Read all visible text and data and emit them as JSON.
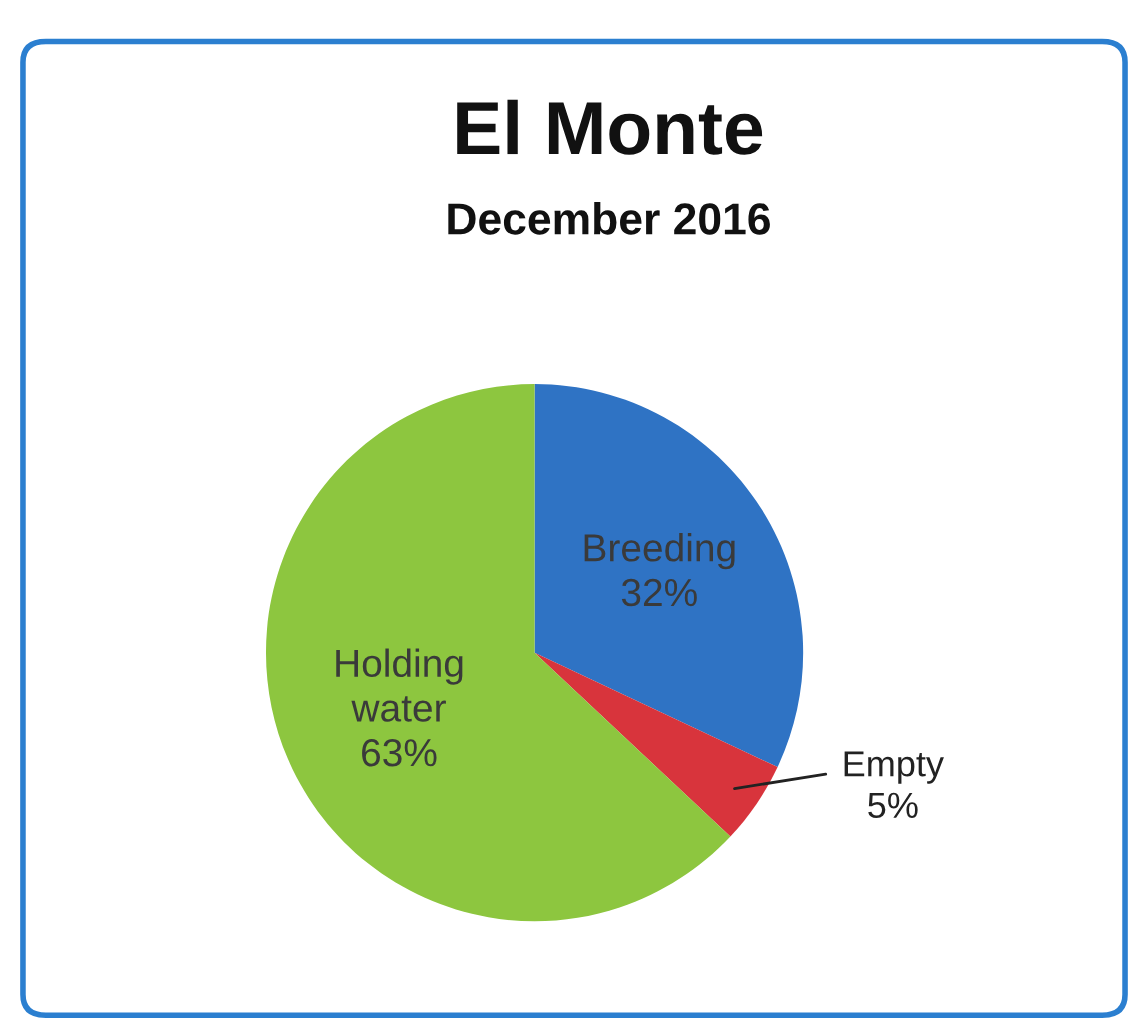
{
  "chart_data": {
    "type": "pie",
    "title": "El Monte",
    "subtitle": "December 2016",
    "categories": [
      "Breeding",
      "Empty",
      "Holding water"
    ],
    "values": [
      32,
      5,
      63
    ],
    "value_labels": [
      "32%",
      "5%",
      "63%"
    ],
    "colors": [
      "#2f73c4",
      "#d8343c",
      "#8dc63f"
    ]
  }
}
